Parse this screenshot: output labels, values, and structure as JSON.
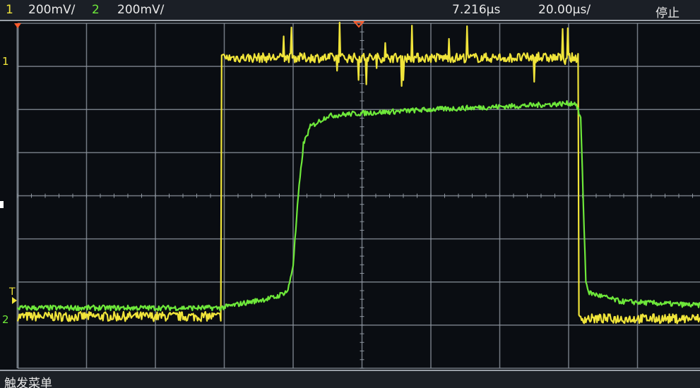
{
  "status_bar": {
    "ch1_label": "1",
    "ch1_scale": "200mV/",
    "ch2_label": "2",
    "ch2_scale": "200mV/",
    "trigger_delay": "7.216µs",
    "timebase": "20.00µs/",
    "run_state": "停止"
  },
  "softkey_bar": {
    "menu_title": "触发菜单"
  },
  "markers": {
    "ch1": "1",
    "trigger": "T",
    "ch2": "2"
  },
  "colors": {
    "ch1": "#f0e43a",
    "ch2": "#6ee83a",
    "grid": "#8e96a0",
    "trigger_marker": "#ff5a2a"
  },
  "chart_data": {
    "type": "line",
    "title": "",
    "xlabel": "",
    "ylabel": "",
    "x_units": "µs",
    "y_units": "div",
    "xlim": [
      -100,
      100
    ],
    "ylim": [
      -4,
      4
    ],
    "grid": true,
    "x_divisions": 10,
    "y_divisions": 8,
    "series": [
      {
        "name": "1",
        "color": "#f0e43a",
        "points": [
          [
            -100,
            -2.8
          ],
          [
            -41,
            -2.8
          ],
          [
            -41,
            3.2
          ],
          [
            62.8,
            3.2
          ],
          [
            62.8,
            -2.85
          ],
          [
            100,
            -2.85
          ]
        ]
      },
      {
        "name": "2",
        "color": "#6ee83a",
        "points": [
          [
            -100,
            -2.6
          ],
          [
            -41,
            -2.6
          ],
          [
            -35,
            -2.5
          ],
          [
            -25,
            -2.35
          ],
          [
            -21.5,
            -2.2
          ],
          [
            -20,
            -1.6
          ],
          [
            -18.5,
            0
          ],
          [
            -17,
            1.2
          ],
          [
            -15,
            1.6
          ],
          [
            -10,
            1.85
          ],
          [
            -3,
            1.9
          ],
          [
            20,
            2.0
          ],
          [
            50,
            2.1
          ],
          [
            62,
            2.15
          ],
          [
            63.5,
            1.8
          ],
          [
            65,
            -2.0
          ],
          [
            66,
            -2.25
          ],
          [
            75,
            -2.45
          ],
          [
            100,
            -2.55
          ]
        ]
      }
    ]
  }
}
